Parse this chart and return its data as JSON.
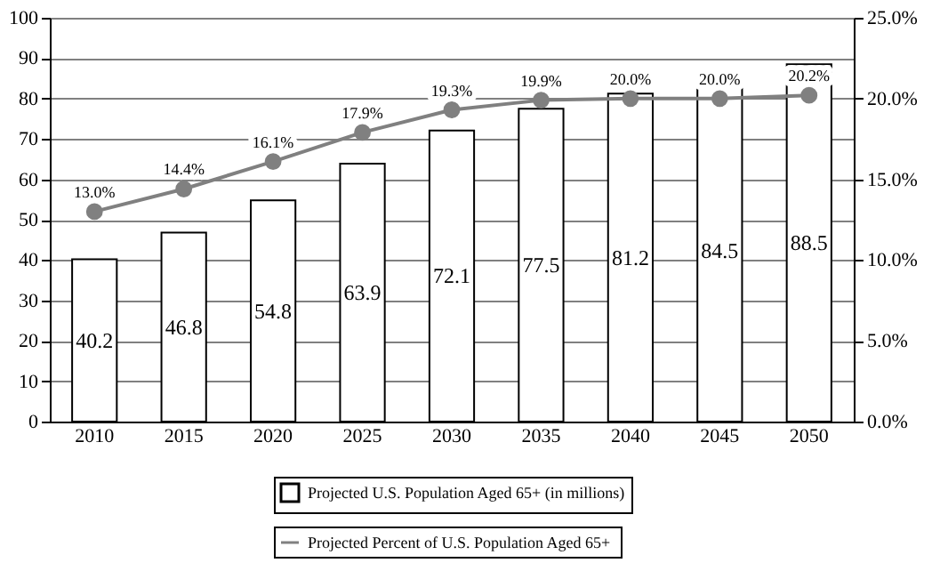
{
  "chart_data": {
    "type": "bar",
    "categories": [
      "2010",
      "2015",
      "2020",
      "2025",
      "2030",
      "2035",
      "2040",
      "2045",
      "2050"
    ],
    "series": [
      {
        "name": "Projected U.S. Population Aged 65+ (in millions)",
        "color": "#ffffff",
        "values": [
          40.2,
          46.8,
          54.8,
          63.9,
          72.1,
          77.5,
          81.2,
          84.5,
          88.5
        ],
        "value_labels": [
          "40.2",
          "46.8",
          "54.8",
          "63.9",
          "72.1",
          "77.5",
          "81.2",
          "84.5",
          "88.5"
        ]
      },
      {
        "name": "Projected Percent of  U.S. Population Aged 65+",
        "type": "line",
        "axis": "y2",
        "color": "#808080",
        "values": [
          13.0,
          14.4,
          16.1,
          17.9,
          19.3,
          19.9,
          20.0,
          20.0,
          20.2
        ],
        "value_labels": [
          "13.0%",
          "14.4%",
          "16.1%",
          "17.9%",
          "19.3%",
          "19.9%",
          "20.0%",
          "20.0%",
          "20.2%"
        ]
      }
    ],
    "ylim": [
      0,
      100
    ],
    "yticks": [
      0,
      10,
      20,
      30,
      40,
      50,
      60,
      70,
      80,
      90,
      100
    ],
    "y2lim": [
      0,
      25
    ],
    "y2ticks": [
      {
        "value": 0,
        "label": "0.0%"
      },
      {
        "value": 5,
        "label": "5.0%"
      },
      {
        "value": 10,
        "label": "10.0%"
      },
      {
        "value": 15,
        "label": "15.0%"
      },
      {
        "value": 20,
        "label": "20.0%"
      },
      {
        "value": 25,
        "label": "25.0%"
      }
    ],
    "grid": "y",
    "legend": "bottom",
    "marker": "circle",
    "line_style": "solid"
  }
}
